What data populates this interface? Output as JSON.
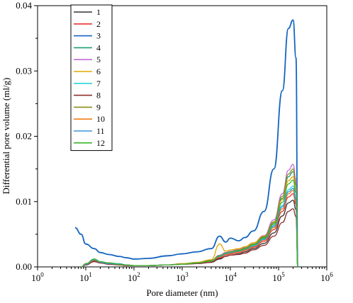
{
  "chart_data": {
    "type": "line",
    "title": "",
    "xlabel": "Pore diameter (nm)",
    "ylabel": "Differential pore volume (ml/g)",
    "xscale": "log",
    "xlim": [
      1,
      1000000
    ],
    "ylim": [
      0,
      0.04
    ],
    "x_ticks": [
      1,
      10,
      100,
      1000,
      10000,
      100000,
      1000000
    ],
    "x_tick_labels": [
      {
        "base": "10",
        "exp": "0"
      },
      {
        "base": "10",
        "exp": "1"
      },
      {
        "base": "10",
        "exp": "2"
      },
      {
        "base": "10",
        "exp": "3"
      },
      {
        "base": "10",
        "exp": "4"
      },
      {
        "base": "10",
        "exp": "5"
      },
      {
        "base": "10",
        "exp": "6"
      }
    ],
    "y_ticks": [
      0,
      0.01,
      0.02,
      0.03,
      0.04
    ],
    "y_tick_labels": [
      "0.00",
      "0.01",
      "0.02",
      "0.03",
      "0.04"
    ],
    "grid": false,
    "legend_position": "top-left",
    "x": [
      6,
      8,
      10,
      15,
      20,
      30,
      50,
      70,
      100,
      200,
      500,
      1000,
      2000,
      4000,
      6000,
      8000,
      10000,
      15000,
      20000,
      30000,
      50000,
      80000,
      120000,
      160000,
      200000,
      230000,
      250000
    ],
    "series": [
      {
        "name": "1",
        "color": "#333333",
        "values": [
          null,
          0,
          0.0003,
          0.0009,
          0.0006,
          0.0005,
          0.0004,
          0.0003,
          0.0002,
          0.0002,
          0.0003,
          0.0004,
          0.0005,
          0.0007,
          0.0012,
          0.0016,
          0.0018,
          0.002,
          0.0023,
          0.0028,
          0.0036,
          0.0052,
          0.0078,
          0.0098,
          0.0102,
          0.0088,
          0
        ]
      },
      {
        "name": "2",
        "color": "#e8352e",
        "values": [
          null,
          0,
          0.0004,
          0.001,
          0.0007,
          0.0005,
          0.0004,
          0.0003,
          0.0002,
          0.0002,
          0.0003,
          0.0004,
          0.0005,
          0.0008,
          0.0014,
          0.0018,
          0.002,
          0.0022,
          0.0025,
          0.003,
          0.0039,
          0.0057,
          0.0085,
          0.0107,
          0.0112,
          0.0096,
          0
        ]
      },
      {
        "name": "3",
        "color": "#1565c0",
        "values": [
          0.006,
          0.005,
          0.0035,
          0.0028,
          0.0022,
          0.0019,
          0.0016,
          0.0014,
          0.0012,
          0.0013,
          0.0017,
          0.002,
          0.0023,
          0.0028,
          0.0047,
          0.0038,
          0.0044,
          0.004,
          0.0045,
          0.0055,
          0.0085,
          0.015,
          0.027,
          0.0365,
          0.0378,
          0.032,
          0
        ]
      },
      {
        "name": "4",
        "color": "#1b9e77",
        "values": [
          null,
          0,
          0.0005,
          0.0011,
          0.0007,
          0.0006,
          0.0004,
          0.0003,
          0.0002,
          0.0002,
          0.0003,
          0.0004,
          0.0006,
          0.0009,
          0.0016,
          0.002,
          0.0022,
          0.0025,
          0.0028,
          0.0034,
          0.0045,
          0.0067,
          0.0105,
          0.0138,
          0.0146,
          0.0125,
          0
        ]
      },
      {
        "name": "5",
        "color": "#c36be0",
        "values": [
          null,
          0,
          0.0005,
          0.0012,
          0.0008,
          0.0006,
          0.0005,
          0.0003,
          0.0002,
          0.0002,
          0.0003,
          0.0005,
          0.0006,
          0.001,
          0.0018,
          0.0022,
          0.0024,
          0.0027,
          0.003,
          0.0037,
          0.0048,
          0.0072,
          0.0112,
          0.0148,
          0.0157,
          0.0134,
          0
        ]
      },
      {
        "name": "6",
        "color": "#e0a800",
        "values": [
          null,
          0,
          0.0005,
          0.0011,
          0.0008,
          0.0006,
          0.0004,
          0.0003,
          0.0002,
          0.0002,
          0.0003,
          0.0005,
          0.0007,
          0.0011,
          0.0035,
          0.0024,
          0.0026,
          0.0028,
          0.0031,
          0.0037,
          0.0047,
          0.0068,
          0.0103,
          0.0132,
          0.0138,
          0.0118,
          0
        ]
      },
      {
        "name": "7",
        "color": "#2ed3db",
        "values": [
          null,
          0,
          0.0004,
          0.0012,
          0.0008,
          0.0006,
          0.0005,
          0.0003,
          0.0002,
          0.0002,
          0.0003,
          0.0004,
          0.0006,
          0.0009,
          0.0016,
          0.002,
          0.0022,
          0.0024,
          0.0027,
          0.0033,
          0.0043,
          0.0063,
          0.0094,
          0.0118,
          0.0124,
          0.0106,
          0
        ]
      },
      {
        "name": "8",
        "color": "#8b2e2e",
        "values": [
          null,
          0,
          0.0003,
          0.0008,
          0.0006,
          0.0004,
          0.0003,
          0.0002,
          0.0002,
          0.0002,
          0.0003,
          0.0004,
          0.0005,
          0.0007,
          0.0013,
          0.0016,
          0.0018,
          0.0019,
          0.0021,
          0.0026,
          0.0033,
          0.0047,
          0.0068,
          0.0085,
          0.0089,
          0.0077,
          0
        ]
      },
      {
        "name": "9",
        "color": "#8b8b1a",
        "values": [
          null,
          0,
          0.0005,
          0.0011,
          0.0008,
          0.0006,
          0.0004,
          0.0003,
          0.0002,
          0.0002,
          0.0003,
          0.0004,
          0.0006,
          0.001,
          0.0017,
          0.0021,
          0.0023,
          0.0026,
          0.0029,
          0.0035,
          0.0046,
          0.0069,
          0.0108,
          0.0142,
          0.015,
          0.0128,
          0
        ]
      },
      {
        "name": "10",
        "color": "#f07d1a",
        "values": [
          null,
          0,
          0.0004,
          0.001,
          0.0007,
          0.0005,
          0.0004,
          0.0003,
          0.0002,
          0.0002,
          0.0003,
          0.0004,
          0.0006,
          0.0009,
          0.0015,
          0.0019,
          0.0021,
          0.0023,
          0.0026,
          0.0031,
          0.0041,
          0.006,
          0.0089,
          0.0112,
          0.0117,
          0.01,
          0
        ]
      },
      {
        "name": "11",
        "color": "#3a95d8",
        "values": [
          null,
          0,
          0.0004,
          0.0011,
          0.0007,
          0.0005,
          0.0004,
          0.0003,
          0.0002,
          0.0002,
          0.0003,
          0.0004,
          0.0006,
          0.0009,
          0.0016,
          0.002,
          0.0022,
          0.0024,
          0.0027,
          0.0032,
          0.0042,
          0.0062,
          0.0092,
          0.0115,
          0.012,
          0.0103,
          0
        ]
      },
      {
        "name": "12",
        "color": "#3cb52e",
        "values": [
          null,
          0,
          0.0005,
          0.0012,
          0.0008,
          0.0006,
          0.0004,
          0.0003,
          0.0002,
          0.0002,
          0.0003,
          0.0004,
          0.0006,
          0.0009,
          0.0017,
          0.0021,
          0.0023,
          0.0025,
          0.0028,
          0.0034,
          0.0044,
          0.0065,
          0.0099,
          0.0127,
          0.0133,
          0.0114,
          0
        ]
      }
    ]
  }
}
